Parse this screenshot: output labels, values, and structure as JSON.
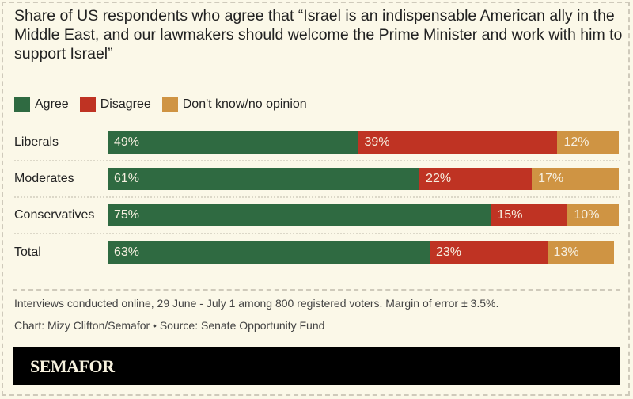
{
  "chart_data": {
    "type": "bar",
    "stacked": true,
    "orientation": "horizontal",
    "title": "Share of US respondents who agree that “Israel is an indispensable American ally in the Middle East, and our lawmakers should welcome the Prime Minister and work with him to support Israel”",
    "categories": [
      "Liberals",
      "Moderates",
      "Conservatives",
      "Total"
    ],
    "series": [
      {
        "name": "Agree",
        "color": "#2f6a41",
        "values": [
          49,
          61,
          75,
          63
        ]
      },
      {
        "name": "Disagree",
        "color": "#bf3323",
        "values": [
          39,
          22,
          15,
          23
        ]
      },
      {
        "name": "Don't know/no opinion",
        "color": "#cf9443",
        "values": [
          12,
          17,
          10,
          13
        ]
      }
    ],
    "xlim": [
      0,
      100
    ],
    "value_suffix": "%",
    "legend": "top-left",
    "grid": false
  },
  "notes": {
    "methodology": "Interviews conducted online, 29 June - July 1 among 800 registered voters. Margin of error ± 3.5%.",
    "credit": "Chart: Mizy Clifton/Semafor • Source: Senate Opportunity Fund"
  },
  "footer": {
    "logo": "SEMAFOR"
  }
}
